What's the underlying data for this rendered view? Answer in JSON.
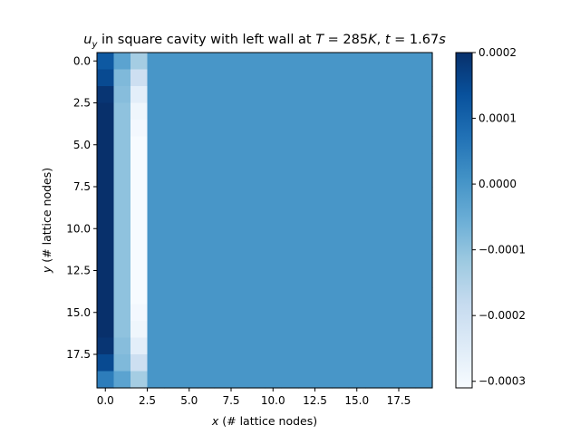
{
  "chart_data": {
    "type": "heatmap",
    "title": "u_y in square cavity with left wall at T = 285K, t = 1.67s",
    "xlabel": "x (# lattice nodes)",
    "ylabel": "y (# lattice nodes)",
    "x_ticks": [
      "0.0",
      "2.5",
      "5.0",
      "7.5",
      "10.0",
      "12.5",
      "15.0",
      "17.5"
    ],
    "y_ticks": [
      "0.0",
      "2.5",
      "5.0",
      "7.5",
      "10.0",
      "12.5",
      "15.0",
      "17.5"
    ],
    "xlim": [
      -0.5,
      19.5
    ],
    "ylim": [
      19.5,
      -0.5
    ],
    "colormap": "Blues",
    "colorbar": {
      "min": -0.00031,
      "max": 0.0002,
      "ticks": [
        "0.0002",
        "0.0001",
        "0.0000",
        "−0.0001",
        "−0.0002",
        "−0.0003"
      ]
    },
    "grid": false,
    "nx": 20,
    "ny": 20,
    "background_value": 0.0,
    "columns": [
      {
        "x": 0,
        "values": [
          0.00012,
          0.00015,
          0.00019,
          0.0002,
          0.0002,
          0.0002,
          0.0002,
          0.0002,
          0.0002,
          0.0002,
          0.0002,
          0.0002,
          0.0002,
          0.0002,
          0.0002,
          0.0002,
          0.0002,
          0.00019,
          0.00015,
          5e-05
        ]
      },
      {
        "x": 1,
        "values": [
          -3e-05,
          -8e-05,
          -9e-05,
          -0.0001,
          -0.0001,
          -0.0001,
          -0.0001,
          -0.0001,
          -0.0001,
          -0.0001,
          -0.0001,
          -0.0001,
          -0.0001,
          -0.0001,
          -0.0001,
          -0.0001,
          -0.0001,
          -9e-05,
          -8e-05,
          -3e-05
        ]
      },
      {
        "x": 2,
        "values": [
          -0.00013,
          -0.0002,
          -0.00026,
          -0.00029,
          -0.0003,
          -0.00031,
          -0.00031,
          -0.00031,
          -0.00031,
          -0.00031,
          -0.00031,
          -0.00031,
          -0.00031,
          -0.00031,
          -0.00031,
          -0.0003,
          -0.00029,
          -0.00026,
          -0.0002,
          -0.00013
        ]
      }
    ]
  }
}
